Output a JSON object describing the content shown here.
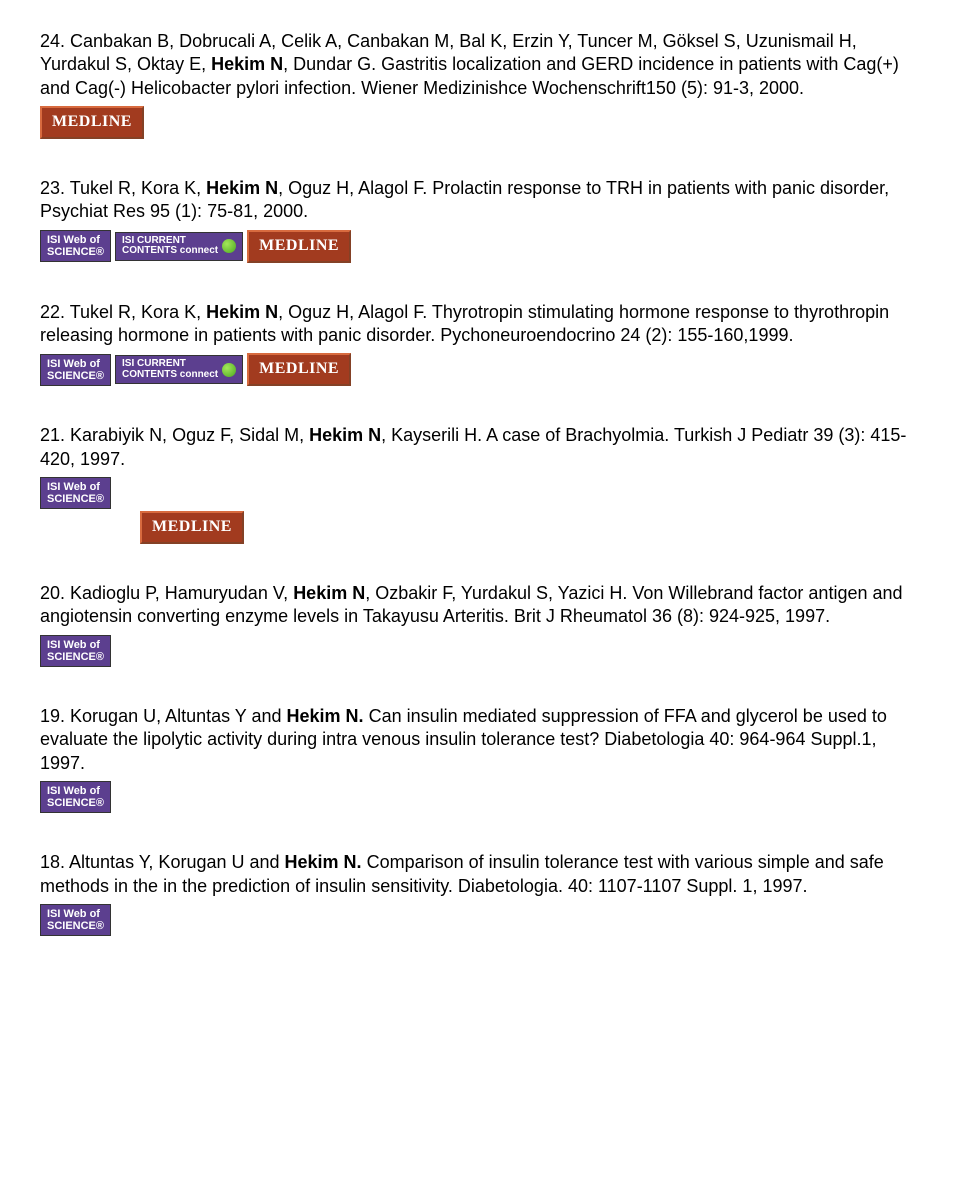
{
  "badges": {
    "wos_line1": "ISI Web of",
    "wos_line2": "SCIENCE®",
    "icc_line1": "ISI CURRENT",
    "icc_line2": "CONTENTS connect",
    "medline": "MEDLINE"
  },
  "entries": [
    {
      "num": "24. ",
      "pre": "Canbakan B, Dobrucali A, Celik A, Canbakan M, Bal K, Erzin Y, Tuncer M, Göksel S, Uzunismail H, Yurdakul S, Oktay E, ",
      "bold": "Hekim N",
      "post": ", Dundar G. Gastritis localization and GERD incidence in patients with Cag(+) and Cag(-) Helicobacter pylori infection. Wiener Medizinishce Wochenschrift150 (5): 91-3, 2000.",
      "badges": [
        "medline"
      ],
      "inline": false
    },
    {
      "num": "23. ",
      "pre": "Tukel R, Kora K, ",
      "bold": "Hekim N",
      "post": ", Oguz H, Alagol F. Prolactin response to TRH in patients with panic disorder, Psychiat Res 95 (1): 75-81, 2000.",
      "badges": [
        "wos",
        "icc",
        "medline"
      ],
      "inline": false
    },
    {
      "num": "22. ",
      "pre": "Tukel R, Kora K, ",
      "bold": "Hekim N",
      "post": ", Oguz H, Alagol F.  Thyrotropin stimulating hormone response to thyrothropin releasing hormone in patients with panic disorder. Pychoneuroendocrino 24 (2): 155-160,1999.",
      "badges": [
        "wos",
        "icc",
        "medline"
      ],
      "inline": false
    },
    {
      "num": "21. ",
      "pre": "Karabiyik N, Oguz F, Sidal M, ",
      "bold": "Hekim N",
      "post": ", Kayserili H. A case of Brachyolmia. Turkish J Pediatr 39 (3): 415-420, 1997.",
      "badges": [
        "wos",
        "medline"
      ],
      "inline": true
    },
    {
      "num": "20. ",
      "pre": "Kadioglu P, Hamuryudan V, ",
      "bold": "Hekim N",
      "post": ", Ozbakir F, Yurdakul S, Yazici H. Von Willebrand factor antigen and angiotensin converting enzyme levels in Takayusu Arteritis. Brit J Rheumatol 36 (8): 924-925, 1997.",
      "badges": [
        "wos"
      ],
      "inline": false
    },
    {
      "num": "19. ",
      "pre": "Korugan U, Altuntas Y and ",
      "bold": "Hekim N.",
      "post": " Can insulin mediated suppression of FFA and glycerol be used to evaluate the lipolytic activity during intra venous insulin tolerance test? Diabetologia 40: 964-964 Suppl.1, 1997.",
      "badges": [
        "wos"
      ],
      "inline": false
    },
    {
      "num": "18. ",
      "pre": "Altuntas Y, Korugan U and  ",
      "bold": "Hekim N.",
      "post": "  Comparison of insulin tolerance test with various simple and safe methods in the in the prediction of insulin sensitivity. Diabetologia. 40: 1107-1107 Suppl. 1, 1997.",
      "badges": [
        "wos"
      ],
      "inline": false
    }
  ]
}
